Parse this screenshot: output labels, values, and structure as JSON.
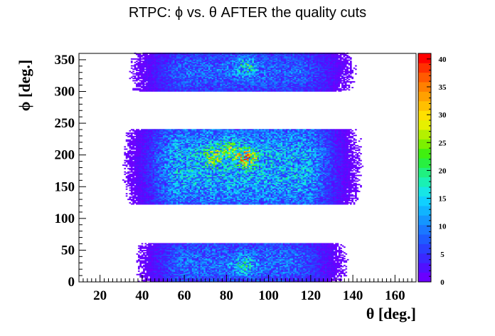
{
  "chart_data": {
    "type": "heatmap",
    "title": "RTPC: ϕ vs. θ AFTER the quality cuts",
    "xlabel": "θ [deg.]",
    "ylabel": "ϕ [deg.]",
    "xlim": [
      10,
      170
    ],
    "ylim": [
      0,
      360
    ],
    "x_ticks": [
      20,
      40,
      60,
      80,
      100,
      120,
      140,
      160
    ],
    "y_ticks": [
      0,
      50,
      100,
      150,
      200,
      250,
      300,
      350
    ],
    "colorbar": {
      "range": [
        0,
        41
      ],
      "ticks": [
        0,
        5,
        10,
        15,
        20,
        25,
        30,
        35,
        40
      ]
    },
    "grid": false,
    "bands": [
      {
        "phi_range": [
          0,
          60
        ],
        "theta_range": [
          30,
          145
        ],
        "theta_core": [
          60,
          110
        ],
        "peak_counts": 15,
        "hotspots": [
          {
            "theta": 88,
            "phi": 25,
            "counts": 16
          }
        ]
      },
      {
        "phi_range": [
          122,
          240
        ],
        "theta_range": [
          25,
          150
        ],
        "theta_core": [
          58,
          115
        ],
        "peak_counts": 22,
        "hotspots": [
          {
            "theta": 89,
            "phi": 195,
            "counts": 28
          },
          {
            "theta": 73,
            "phi": 195,
            "counts": 22
          },
          {
            "theta": 80,
            "phi": 210,
            "counts": 20
          }
        ]
      },
      {
        "phi_range": [
          300,
          360
        ],
        "theta_range": [
          25,
          150
        ],
        "theta_core": [
          62,
          112
        ],
        "peak_counts": 14,
        "hotspots": [
          {
            "theta": 89,
            "phi": 338,
            "counts": 17
          }
        ]
      }
    ]
  }
}
